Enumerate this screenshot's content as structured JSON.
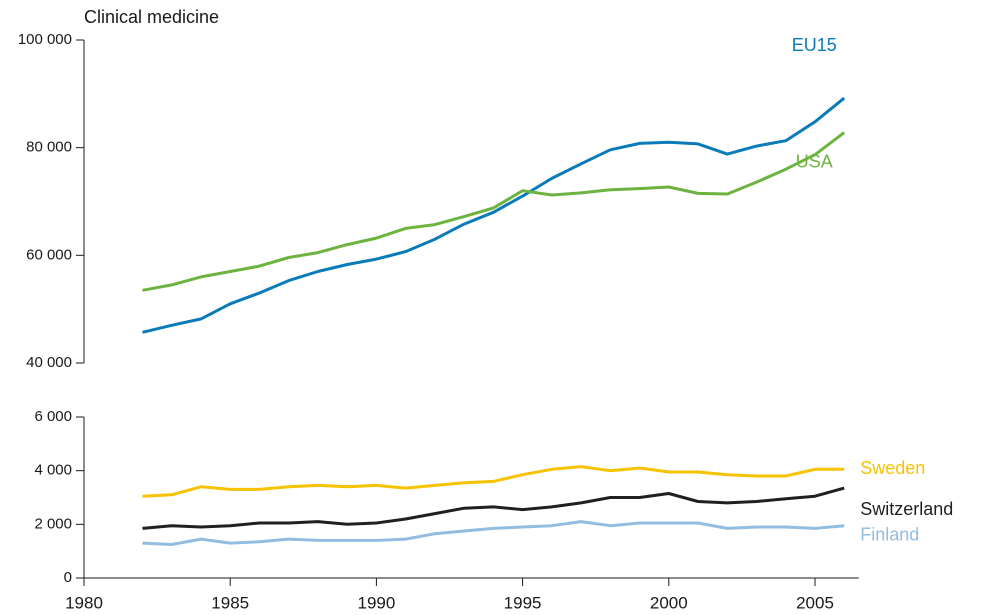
{
  "chart_data": [
    {
      "type": "line",
      "title": "Clinical medicine",
      "x": [
        1982,
        1983,
        1984,
        1985,
        1986,
        1987,
        1988,
        1989,
        1990,
        1991,
        1992,
        1993,
        1994,
        1995,
        1996,
        1997,
        1998,
        1999,
        2000,
        2001,
        2002,
        2003,
        2004,
        2005,
        2006
      ],
      "xlim": [
        1980,
        2006.5
      ],
      "ylim": [
        40000,
        100000
      ],
      "yticks": [
        {
          "value": 40000,
          "label": "40 000"
        },
        {
          "value": 60000,
          "label": "60 000"
        },
        {
          "value": 80000,
          "label": "80 000"
        },
        {
          "value": 100000,
          "label": "100 000"
        }
      ],
      "series": [
        {
          "name": "EU15",
          "color": "#0a7bb8",
          "values": [
            45700,
            47000,
            48200,
            51000,
            53000,
            55300,
            57000,
            58300,
            59300,
            60700,
            63000,
            65800,
            68000,
            71000,
            74300,
            77000,
            79600,
            80800,
            81000,
            80700,
            78800,
            80300,
            81300,
            84800,
            89200
          ]
        },
        {
          "name": "USA",
          "color": "#6db33f",
          "values": [
            53500,
            54500,
            56000,
            57000,
            58000,
            59600,
            60500,
            62000,
            63200,
            65000,
            65700,
            67200,
            68800,
            72000,
            71200,
            71600,
            72200,
            72400,
            72700,
            71500,
            71400,
            73600,
            76000,
            78700,
            82800
          ]
        }
      ]
    },
    {
      "type": "line",
      "x": [
        1982,
        1983,
        1984,
        1985,
        1986,
        1987,
        1988,
        1989,
        1990,
        1991,
        1992,
        1993,
        1994,
        1995,
        1996,
        1997,
        1998,
        1999,
        2000,
        2001,
        2002,
        2003,
        2004,
        2005,
        2006
      ],
      "xlim": [
        1980,
        2006.5
      ],
      "xticks": [
        1980,
        1985,
        1990,
        1995,
        2000,
        2005
      ],
      "ylim": [
        0,
        6000
      ],
      "yticks": [
        0,
        {
          "value": 2000,
          "label": "2 000"
        },
        {
          "value": 4000,
          "label": "4 000"
        },
        {
          "value": 6000,
          "label": "6 000"
        }
      ],
      "series": [
        {
          "name": "Sweden",
          "color": "#f7c200",
          "values": [
            3050,
            3100,
            3400,
            3300,
            3300,
            3400,
            3450,
            3400,
            3450,
            3350,
            3450,
            3550,
            3600,
            3850,
            4050,
            4150,
            4000,
            4100,
            3950,
            3950,
            3850,
            3800,
            3800,
            4050,
            4050
          ]
        },
        {
          "name": "Switzerland",
          "color": "#231f20",
          "values": [
            1850,
            1950,
            1900,
            1950,
            2050,
            2050,
            2100,
            2000,
            2050,
            2200,
            2400,
            2600,
            2650,
            2550,
            2650,
            2800,
            3000,
            3000,
            3150,
            2850,
            2800,
            2850,
            2950,
            3050,
            3350
          ]
        },
        {
          "name": "Finland",
          "color": "#92bde0",
          "values": [
            1300,
            1250,
            1450,
            1300,
            1350,
            1450,
            1400,
            1400,
            1400,
            1450,
            1650,
            1750,
            1850,
            1900,
            1950,
            2100,
            1950,
            2050,
            2050,
            2050,
            1850,
            1900,
            1900,
            1850,
            1950
          ]
        }
      ]
    }
  ]
}
